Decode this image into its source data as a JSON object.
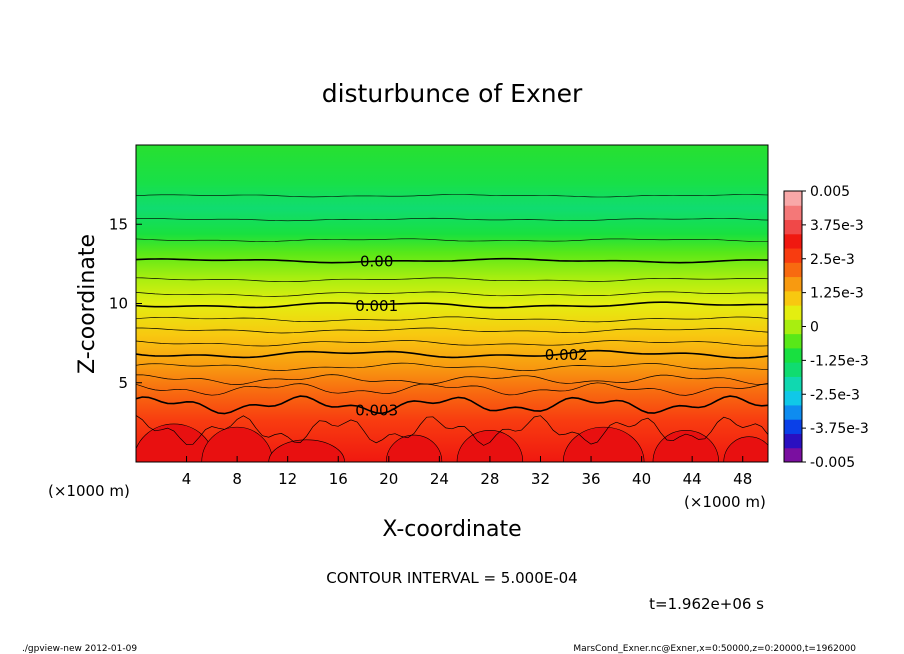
{
  "chart_data": {
    "type": "contour",
    "title": "disturbunce of Exner",
    "xlabel": "X-coordinate",
    "ylabel": "Z-coordinate",
    "x_unit_left": "(×1000 m)",
    "x_unit_right": "(×1000 m)",
    "xlim": [
      0,
      50
    ],
    "ylim": [
      0,
      20
    ],
    "xticks": [
      "4",
      "8",
      "12",
      "16",
      "20",
      "24",
      "28",
      "32",
      "36",
      "40",
      "44",
      "48"
    ],
    "yticks": [
      "5",
      "10",
      "15"
    ],
    "contour_labels": [
      {
        "text": "0.00",
        "x": 17.3,
        "z": 12.7
      },
      {
        "text": "0.001",
        "x": 17.3,
        "z": 9.9
      },
      {
        "text": "0.002",
        "x": 32.3,
        "z": 6.8
      },
      {
        "text": "0.003",
        "x": 17.3,
        "z": 3.3
      }
    ],
    "colorbar": {
      "min": -0.005,
      "max": 0.005,
      "labels": [
        "0.005",
        "3.75e-3",
        "2.5e-3",
        "1.25e-3",
        "0",
        "-1.25e-3",
        "-2.5e-3",
        "-3.75e-3",
        "-0.005"
      ],
      "colors": [
        "#7a0fa0",
        "#2a10c0",
        "#0a40e8",
        "#0e8cf0",
        "#10c8e8",
        "#10d8b0",
        "#10dc70",
        "#18e040",
        "#58e818",
        "#a8ee10",
        "#e4ee10",
        "#f8c810",
        "#f89a10",
        "#f86a10",
        "#f83c10",
        "#f01810",
        "#f04848",
        "#f47878",
        "#f8a8a8"
      ]
    },
    "contour_interval": "CONTOUR INTERVAL = 5.000E-04",
    "time": "t=1.962e+06 s"
  },
  "footer": {
    "left": "./gpview-new  2012-01-09",
    "right": "MarsCond_Exner.nc@Exner,x=0:50000,z=0:20000,t=1962000"
  }
}
